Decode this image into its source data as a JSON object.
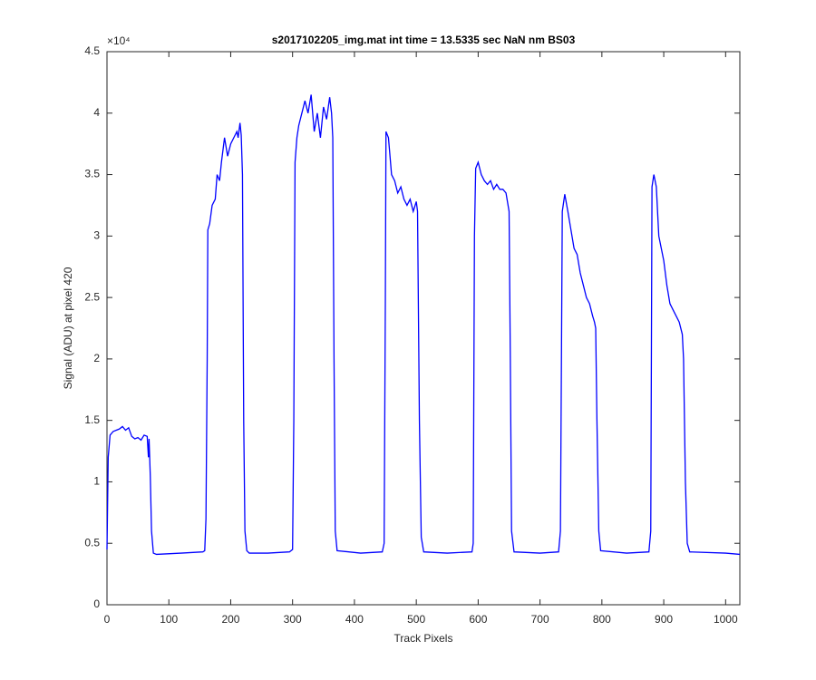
{
  "chart_data": {
    "type": "line",
    "title": "s2017102205_img.mat int time = 13.5335 sec  NaN nm BS03",
    "xlabel": "Track Pixels",
    "ylabel": "Signal (ADU) at pixel 420",
    "y_exponent_label": "×10⁴",
    "xlim": [
      0,
      1023
    ],
    "xticks": [
      0,
      100,
      200,
      300,
      400,
      500,
      600,
      700,
      800,
      900,
      1000
    ],
    "ylim": [
      0,
      4.5
    ],
    "yticks": [
      0,
      0.5,
      1,
      1.5,
      2,
      2.5,
      3,
      3.5,
      4,
      4.5
    ],
    "grid": false,
    "series": [
      {
        "color": "#0000ff",
        "x": [
          0,
          2,
          5,
          10,
          15,
          20,
          25,
          30,
          35,
          40,
          45,
          50,
          55,
          60,
          65,
          67,
          68,
          70,
          72,
          75,
          80,
          120,
          155,
          158,
          160,
          162,
          163,
          166,
          170,
          175,
          178,
          182,
          185,
          190,
          195,
          200,
          205,
          210,
          212,
          215,
          217,
          219,
          221,
          223,
          226,
          230,
          260,
          295,
          300,
          302,
          304,
          307,
          310,
          315,
          320,
          325,
          330,
          335,
          340,
          345,
          350,
          355,
          360,
          363,
          365,
          367,
          369,
          372,
          410,
          445,
          448,
          450,
          451,
          455,
          460,
          465,
          470,
          475,
          480,
          485,
          490,
          495,
          500,
          502,
          505,
          508,
          512,
          550,
          590,
          592,
          594,
          596,
          600,
          605,
          610,
          615,
          620,
          625,
          630,
          635,
          640,
          645,
          650,
          652,
          654,
          658,
          700,
          730,
          733,
          736,
          740,
          745,
          750,
          755,
          760,
          765,
          770,
          775,
          780,
          785,
          788,
          790,
          792,
          795,
          798,
          840,
          876,
          879,
          881,
          884,
          888,
          892,
          896,
          900,
          905,
          910,
          915,
          920,
          925,
          930,
          932,
          935,
          938,
          942,
          1000,
          1023
        ],
        "values": [
          0.45,
          1.2,
          1.38,
          1.41,
          1.42,
          1.43,
          1.45,
          1.42,
          1.44,
          1.37,
          1.35,
          1.36,
          1.34,
          1.38,
          1.37,
          1.2,
          1.35,
          1.05,
          0.6,
          0.42,
          0.41,
          0.42,
          0.43,
          0.44,
          0.7,
          2.0,
          3.05,
          3.1,
          3.25,
          3.3,
          3.5,
          3.45,
          3.6,
          3.8,
          3.65,
          3.75,
          3.8,
          3.85,
          3.8,
          3.92,
          3.82,
          3.5,
          1.5,
          0.6,
          0.44,
          0.42,
          0.42,
          0.43,
          0.45,
          1.5,
          3.6,
          3.8,
          3.9,
          4.0,
          4.1,
          4.0,
          4.15,
          3.85,
          4.0,
          3.8,
          4.05,
          3.95,
          4.13,
          4.0,
          3.8,
          2.0,
          0.6,
          0.44,
          0.42,
          0.43,
          0.5,
          2.5,
          3.85,
          3.8,
          3.5,
          3.45,
          3.35,
          3.4,
          3.3,
          3.25,
          3.3,
          3.2,
          3.28,
          3.2,
          1.5,
          0.55,
          0.43,
          0.42,
          0.43,
          0.5,
          3.0,
          3.55,
          3.6,
          3.5,
          3.45,
          3.42,
          3.45,
          3.38,
          3.42,
          3.38,
          3.38,
          3.35,
          3.2,
          2.0,
          0.6,
          0.43,
          0.42,
          0.43,
          0.6,
          3.2,
          3.34,
          3.2,
          3.05,
          2.9,
          2.85,
          2.7,
          2.6,
          2.5,
          2.45,
          2.35,
          2.3,
          2.25,
          1.5,
          0.6,
          0.44,
          0.42,
          0.43,
          0.6,
          3.4,
          3.5,
          3.4,
          3.0,
          2.9,
          2.8,
          2.6,
          2.45,
          2.4,
          2.35,
          2.3,
          2.2,
          2.0,
          1.0,
          0.5,
          0.43,
          0.42,
          0.41
        ]
      }
    ]
  }
}
